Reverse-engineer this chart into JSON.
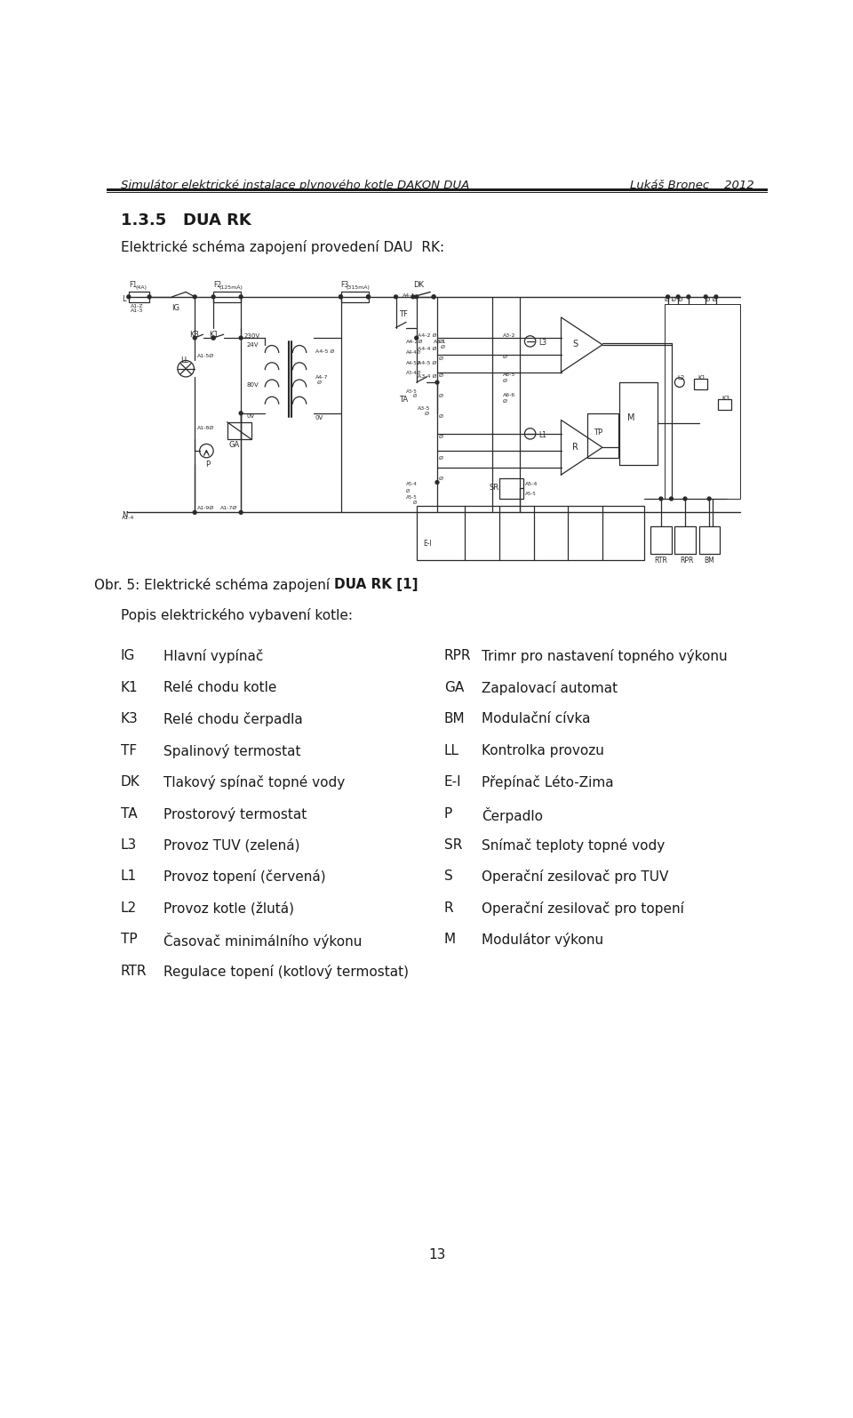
{
  "header_left": "Simulátor elektrické instalace plynového kotle DAKON DUA",
  "header_right": "Lukáš Bronec    2012",
  "section_title": "1.3.5   DUA RK",
  "intro_line1": "Elektrické schéma zapojení provedení DAU  RK:",
  "figure_caption_normal": "Obr. 5: Elektrické schéma zapojení ",
  "figure_caption_bold": "DUA RK [1]",
  "popis_label": "Popis elektrického vybavení kotle:",
  "left_entries": [
    [
      "IG",
      "Hlavní vypínač"
    ],
    [
      "K1",
      "Relé chodu kotle"
    ],
    [
      "K3",
      "Relé chodu čerpadla"
    ],
    [
      "TF",
      "Spalinový termostat"
    ],
    [
      "DK",
      "Tlakový spínač topné vody"
    ],
    [
      "TA",
      "Prostorový termostat"
    ],
    [
      "L3",
      "Provoz TUV (zelená)"
    ],
    [
      "L1",
      "Provoz topení (červená)"
    ],
    [
      "L2",
      "Provoz kotle (žlutá)"
    ],
    [
      "TP",
      "Časovač minimálního výkonu"
    ],
    [
      "RTR",
      "Regulace topení (kotlový termostat)"
    ]
  ],
  "right_entries": [
    [
      "RPR",
      "Trimr pro nastavení topného výkonu"
    ],
    [
      "GA",
      "Zapalovací automat"
    ],
    [
      "BM",
      "Modulační cívka"
    ],
    [
      "LL",
      "Kontrolka provozu"
    ],
    [
      "E-I",
      "Přepínač Léto-Zima"
    ],
    [
      "P",
      "Čerpadlo"
    ],
    [
      "SR",
      "Snímač teploty topné vody"
    ],
    [
      "S",
      "Operační zesilovač pro TUV"
    ],
    [
      "R",
      "Operační zesilovač pro topení"
    ],
    [
      "M",
      "Modulátor výkonu"
    ]
  ],
  "page_number": "13",
  "bg_color": "#ffffff",
  "text_color": "#1a1a1a",
  "header_font_size": 9.5,
  "title_font_size": 13,
  "body_font_size": 11,
  "caption_font_size": 11,
  "popis_font_size": 11,
  "schematic_color": "#2a2a2a",
  "schematic_lw": 0.9
}
